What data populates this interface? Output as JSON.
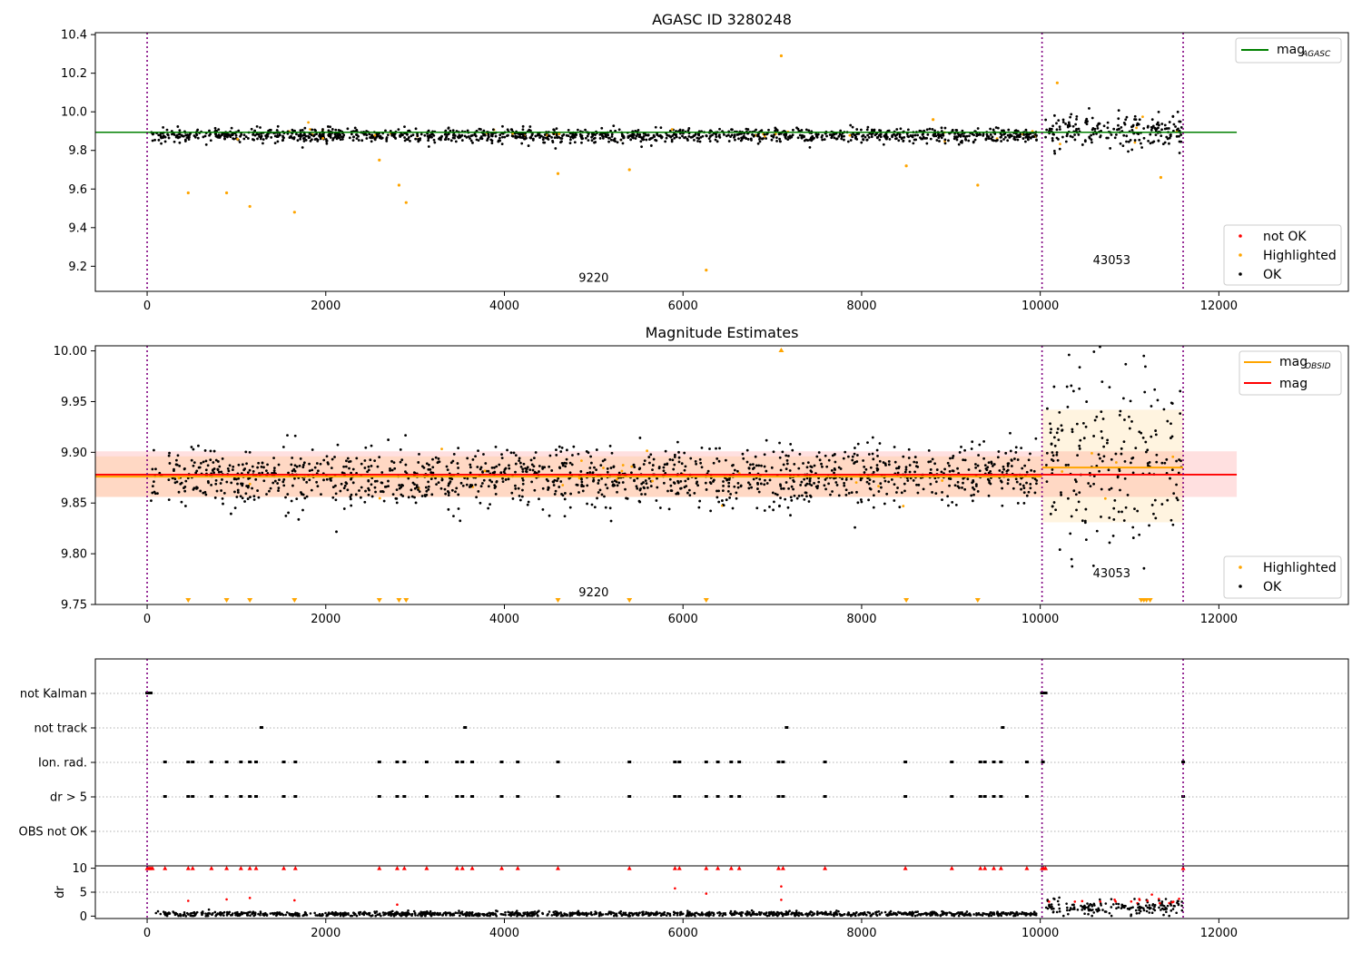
{
  "chart_data": [
    {
      "type": "scatter",
      "title": "AGASC ID 3280248",
      "xlim": [
        -580,
        13450
      ],
      "ylim": [
        9.07,
        10.41
      ],
      "xticks": [
        0,
        2000,
        4000,
        6000,
        8000,
        10000,
        12000
      ],
      "yticks": [
        9.2,
        9.4,
        9.6,
        9.8,
        10.0,
        10.2,
        10.4
      ],
      "ytick_labels": [
        "9.2",
        "9.4",
        "9.6",
        "9.8",
        "10.0",
        "10.2",
        "10.4"
      ],
      "vlines_x": [
        0,
        10020,
        11600
      ],
      "hline": {
        "name_base": "mag",
        "name_sub": "AGASC",
        "y": 9.894,
        "x_range": [
          -580,
          12200
        ],
        "color": "#008000"
      },
      "obsid_labels": [
        {
          "text": "9220",
          "x": 5000,
          "y": 9.12
        },
        {
          "text": "43053",
          "x": 10800,
          "y": 9.21
        }
      ],
      "segments": [
        {
          "x_range": [
            40,
            9960
          ],
          "center": 9.878,
          "spread": 0.018
        },
        {
          "x_range": [
            10060,
            11590
          ],
          "center": 9.9,
          "spread": 0.05
        }
      ],
      "outliers": [
        [
          460,
          9.58
        ],
        [
          890,
          9.58
        ],
        [
          1150,
          9.51
        ],
        [
          1650,
          9.48
        ],
        [
          2600,
          9.75
        ],
        [
          2820,
          9.62
        ],
        [
          2900,
          9.53
        ],
        [
          4600,
          9.68
        ],
        [
          5400,
          9.7
        ],
        [
          6260,
          9.18
        ],
        [
          7100,
          10.29
        ],
        [
          8500,
          9.72
        ],
        [
          8800,
          9.96
        ],
        [
          9300,
          9.62
        ],
        [
          11350,
          9.66
        ],
        [
          10190,
          10.15
        ]
      ],
      "legends": [
        {
          "position": "upper right",
          "entries": [
            "mag_AGASC"
          ]
        },
        {
          "position": "lower right",
          "entries": [
            "not OK",
            "Highlighted",
            "OK"
          ]
        }
      ],
      "series_colors": {
        "not OK": "#ff0000",
        "Highlighted": "#ffa500",
        "OK": "#000000"
      }
    },
    {
      "type": "scatter",
      "title": "Magnitude Estimates",
      "xlim": [
        -580,
        13450
      ],
      "ylim": [
        9.75,
        10.005
      ],
      "xticks": [
        0,
        2000,
        4000,
        6000,
        8000,
        10000,
        12000
      ],
      "yticks": [
        9.75,
        9.8,
        9.85,
        9.9,
        9.95,
        10.0
      ],
      "ytick_labels": [
        "9.75",
        "9.80",
        "9.85",
        "9.90",
        "9.95",
        "10.00"
      ],
      "vlines_x": [
        0,
        10020,
        11600
      ],
      "mag_line": {
        "name": "mag",
        "y": 9.878,
        "band": [
          9.856,
          9.901
        ],
        "x_range": [
          -580,
          12200
        ],
        "color": "#ff0000"
      },
      "obsid_lines": [
        {
          "x_range": [
            -580,
            10020
          ],
          "y": 9.876,
          "band": [
            9.856,
            9.896
          ]
        },
        {
          "x_range": [
            10020,
            11600
          ],
          "y": 9.885,
          "band": [
            9.831,
            9.942
          ]
        }
      ],
      "obsid_line_name_base": "mag",
      "obsid_line_name_sub": "OBSID",
      "obsid_labels": [
        {
          "text": "9220",
          "x": 5000,
          "y": 9.758
        },
        {
          "text": "43053",
          "x": 10800,
          "y": 9.777
        }
      ],
      "clipped_markers_x": [
        460,
        890,
        1150,
        1650,
        2600,
        2820,
        2900,
        4600,
        5400,
        6260,
        8500,
        9300
      ],
      "legends": [
        {
          "position": "upper right",
          "entries": [
            "mag_OBSID",
            "mag"
          ]
        },
        {
          "position": "lower right",
          "entries": [
            "Highlighted",
            "OK"
          ]
        }
      ]
    },
    {
      "type": "scatter",
      "title": "",
      "xlim": [
        -580,
        13450
      ],
      "categories": [
        "not Kalman",
        "not track",
        "Ion. rad.",
        "dr > 5",
        "OBS not OK"
      ],
      "vlines_x": [
        0,
        10020,
        11600
      ],
      "flag_points": {
        "not Kalman": [
          0,
          20,
          40,
          10020,
          10040,
          10060
        ],
        "not track": [
          1280,
          3560,
          7160,
          9580
        ],
        "Ion. rad.": [
          200,
          460,
          510,
          720,
          890,
          1050,
          1150,
          1220,
          1530,
          1660,
          2600,
          2800,
          2880,
          3130,
          3470,
          3530,
          3640,
          3970,
          4150,
          4600,
          5400,
          5910,
          5960,
          6260,
          6390,
          6540,
          6630,
          7070,
          7120,
          7590,
          8490,
          9010,
          9330,
          9380,
          9480,
          9560,
          9850,
          10030,
          11600
        ],
        "dr > 5": [
          200,
          460,
          510,
          720,
          890,
          1050,
          1150,
          1220,
          1530,
          1660,
          2600,
          2800,
          2880,
          3130,
          3470,
          3530,
          3640,
          3970,
          4150,
          4600,
          5400,
          5910,
          5960,
          6260,
          6390,
          6540,
          6630,
          7070,
          7120,
          7590,
          8490,
          9010,
          9330,
          9380,
          9480,
          9560,
          9850,
          11600
        ],
        "OBS not OK": []
      }
    },
    {
      "type": "scatter",
      "title": "",
      "ylabel": "dr",
      "xlim": [
        -580,
        13450
      ],
      "ylim": [
        -0.5,
        10.5
      ],
      "xticks": [
        0,
        2000,
        4000,
        6000,
        8000,
        10000,
        12000
      ],
      "yticks": [
        0,
        5,
        10
      ],
      "vlines_x": [
        0,
        10020,
        11600
      ],
      "capped_dr_x": [
        0,
        20,
        40,
        60,
        200,
        460,
        510,
        720,
        890,
        1050,
        1150,
        1220,
        1530,
        1660,
        2600,
        2800,
        2880,
        3130,
        3470,
        3530,
        3640,
        3970,
        4150,
        4600,
        5400,
        5910,
        5960,
        6260,
        6390,
        6540,
        6630,
        7070,
        7120,
        7590,
        8490,
        9010,
        9330,
        9380,
        9480,
        9560,
        9850,
        10020,
        10040,
        10060,
        11600
      ],
      "mid_dr_points": [
        [
          460,
          3.2
        ],
        [
          890,
          3.5
        ],
        [
          1150,
          3.8
        ],
        [
          1650,
          3.3
        ],
        [
          2800,
          2.4
        ],
        [
          5910,
          5.8
        ],
        [
          6260,
          4.7
        ],
        [
          7100,
          6.2
        ],
        [
          7100,
          3.4
        ],
        [
          11250,
          4.5
        ]
      ],
      "baseline_dr": [
        {
          "x_range": [
            40,
            9960
          ],
          "center": 0.45,
          "spread": 0.25
        },
        {
          "x_range": [
            10060,
            11590
          ],
          "center": 1.9,
          "spread": 0.9
        }
      ]
    }
  ]
}
